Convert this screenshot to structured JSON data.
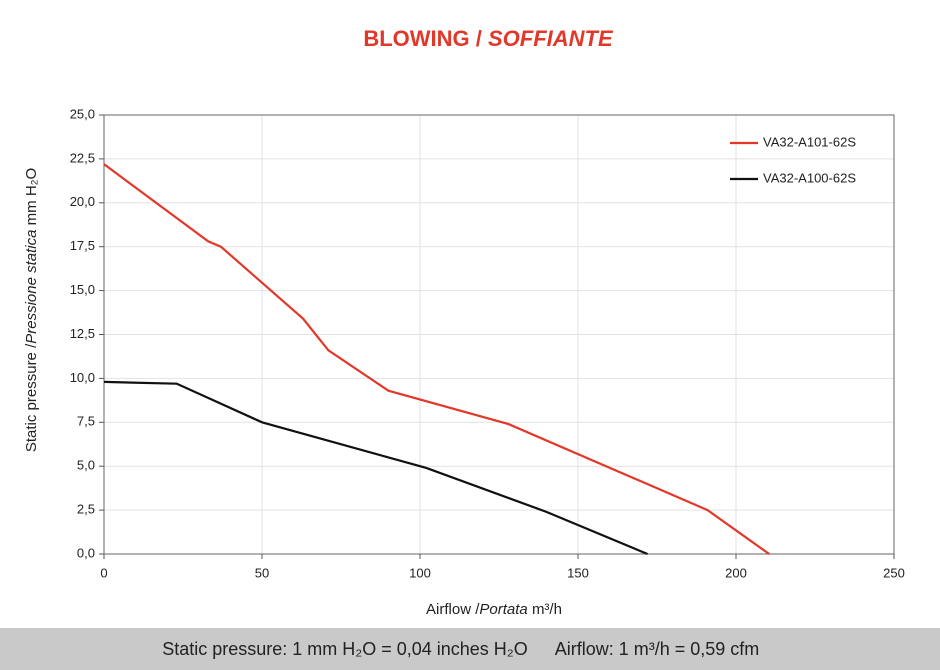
{
  "chart_data": {
    "type": "line",
    "title": [
      "BLOWING /",
      "SOFFIANTE"
    ],
    "y_label": [
      "Static pressure /",
      "Pressione statica",
      "mm H₂O"
    ],
    "x_label": [
      "Airflow /",
      "Portata",
      "m³/h"
    ],
    "xlim": [
      0,
      250
    ],
    "xticks": [
      0,
      50,
      100,
      150,
      200,
      250
    ],
    "ylim": [
      0,
      25
    ],
    "yticks": [
      {
        "value": 0,
        "label": "0,0"
      },
      {
        "value": 2.5,
        "label": "2,5"
      },
      {
        "value": 5,
        "label": "5,0"
      },
      {
        "value": 7.5,
        "label": "7,5"
      },
      {
        "value": 10,
        "label": "10,0"
      },
      {
        "value": 12.5,
        "label": "12,5"
      },
      {
        "value": 15,
        "label": "15,0"
      },
      {
        "value": 17.5,
        "label": "17,5"
      },
      {
        "value": 20,
        "label": "20,0"
      },
      {
        "value": 22.5,
        "label": "22,5"
      },
      {
        "value": 25,
        "label": "25,0"
      }
    ],
    "grid": true,
    "legend": "upper right",
    "series": [
      {
        "name": "VA32-A101-62S",
        "color": "#e2382a",
        "x": [
          0,
          33,
          37,
          63,
          71,
          90,
          128,
          191,
          210.5
        ],
        "values": [
          22.2,
          17.8,
          17.5,
          13.4,
          11.6,
          9.3,
          7.4,
          2.5,
          0
        ]
      },
      {
        "name": "VA32-A100-62S",
        "color": "#111111",
        "x": [
          0,
          23,
          50,
          102,
          140,
          172
        ],
        "values": [
          9.8,
          9.7,
          7.5,
          4.9,
          2.4,
          0
        ]
      }
    ],
    "footer": [
      "Static pressure: 1 mm H₂O = 0,04 inches H₂O",
      "Airflow: 1 m³/h = 0,59 cfm"
    ]
  }
}
